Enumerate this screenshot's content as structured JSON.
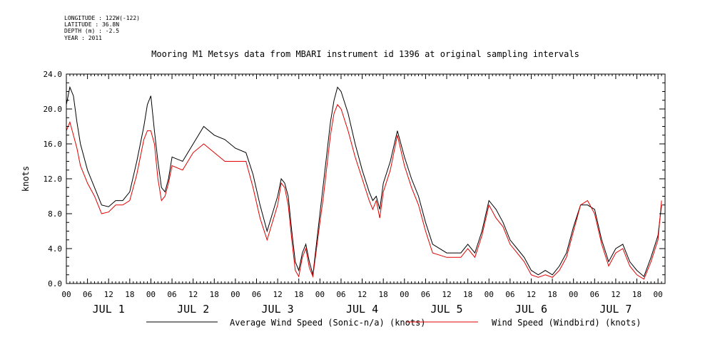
{
  "metadata": {
    "longitude": "LONGITUDE : 122W(-122)",
    "latitude": "LATITUDE : 36.8N",
    "depth": "DEPTH (m) : -2.5",
    "year": "YEAR : 2011"
  },
  "chart_data": {
    "type": "line",
    "title": "Mooring M1 Metsys data from MBARI instrument id 1396 at original sampling intervals",
    "ylabel": "knots",
    "xlabel": "",
    "ylim": [
      0,
      24
    ],
    "yticks": [
      "0.0",
      "4.0",
      "8.0",
      "12.0",
      "16.0",
      "20.0",
      "24.0"
    ],
    "xlim": [
      0,
      170
    ],
    "x_unit": "hours since JUL 1 00",
    "x_hour_ticks": [
      "00",
      "06",
      "12",
      "18"
    ],
    "day_labels": [
      "JUL 1",
      "JUL 2",
      "JUL 3",
      "JUL 4",
      "JUL 5",
      "JUL 6",
      "JUL 7"
    ],
    "grid": false,
    "legend_position": "bottom",
    "x": [
      0,
      1,
      2,
      3,
      4,
      6,
      8,
      10,
      12,
      14,
      16,
      18,
      20,
      22,
      23,
      24,
      25,
      26,
      27,
      28,
      29,
      30,
      33,
      36,
      39,
      42,
      45,
      48,
      51,
      53,
      55,
      57,
      60,
      61,
      62,
      63,
      64,
      65,
      66,
      67,
      68,
      69,
      70,
      72,
      73,
      74,
      75,
      76,
      77,
      78,
      80,
      82,
      84,
      86,
      87,
      88,
      89,
      90,
      92,
      94,
      96,
      98,
      100,
      102,
      104,
      108,
      112,
      114,
      116,
      118,
      120,
      122,
      124,
      126,
      128,
      130,
      132,
      134,
      136,
      138,
      140,
      142,
      144,
      146,
      148,
      150,
      152,
      154,
      156,
      158,
      160,
      162,
      164,
      166,
      168,
      169
    ],
    "series": [
      {
        "name": "Average Wind Speed (Sonic-n/a) (knots)",
        "color": "#000000",
        "values": [
          20.5,
          22.5,
          21.5,
          18.5,
          16.0,
          13.0,
          11.0,
          9.0,
          8.8,
          9.5,
          9.5,
          10.5,
          14.0,
          18.0,
          20.5,
          21.5,
          17.5,
          14.0,
          11.0,
          10.5,
          12.0,
          14.5,
          14.0,
          16.0,
          18.0,
          17.0,
          16.5,
          15.5,
          15.0,
          12.5,
          9.0,
          6.0,
          10.0,
          12.0,
          11.5,
          10.0,
          6.0,
          2.5,
          1.5,
          3.5,
          4.5,
          2.5,
          1.0,
          8.0,
          11.5,
          15.0,
          18.5,
          21.0,
          22.5,
          22.0,
          19.5,
          16.0,
          13.0,
          10.5,
          9.5,
          10.0,
          8.5,
          11.5,
          14.0,
          17.5,
          14.5,
          12.0,
          10.0,
          7.0,
          4.5,
          3.5,
          3.5,
          4.5,
          3.5,
          6.0,
          9.5,
          8.5,
          7.0,
          5.0,
          4.0,
          3.0,
          1.5,
          1.0,
          1.5,
          1.0,
          2.0,
          3.5,
          6.5,
          9.0,
          9.0,
          8.5,
          5.0,
          2.5,
          4.0,
          4.5,
          2.5,
          1.5,
          0.8,
          3.0,
          5.5,
          9.0
        ]
      },
      {
        "name": "Wind Speed (Windbird) (knots)",
        "color": "#e00000",
        "values": [
          17.5,
          18.5,
          17.0,
          15.5,
          13.5,
          11.5,
          10.0,
          8.0,
          8.2,
          9.0,
          9.0,
          9.5,
          12.5,
          16.5,
          17.5,
          17.5,
          16.0,
          12.0,
          9.5,
          10.0,
          11.5,
          13.5,
          13.0,
          15.0,
          16.0,
          15.0,
          14.0,
          14.0,
          14.0,
          11.0,
          7.5,
          5.0,
          9.0,
          11.5,
          11.0,
          9.0,
          5.0,
          1.5,
          0.8,
          3.0,
          4.0,
          1.8,
          0.8,
          7.0,
          10.0,
          13.5,
          17.0,
          19.5,
          20.5,
          20.0,
          17.5,
          14.5,
          12.0,
          9.5,
          8.5,
          9.5,
          7.5,
          10.5,
          13.0,
          17.0,
          13.5,
          11.0,
          9.0,
          6.0,
          3.5,
          3.0,
          3.0,
          4.0,
          3.0,
          5.5,
          9.0,
          7.5,
          6.5,
          4.5,
          3.5,
          2.5,
          1.0,
          0.7,
          1.0,
          0.7,
          1.5,
          3.0,
          6.0,
          9.0,
          9.5,
          8.0,
          4.5,
          2.0,
          3.5,
          4.0,
          2.0,
          1.0,
          0.5,
          2.5,
          5.0,
          9.5
        ]
      }
    ]
  }
}
